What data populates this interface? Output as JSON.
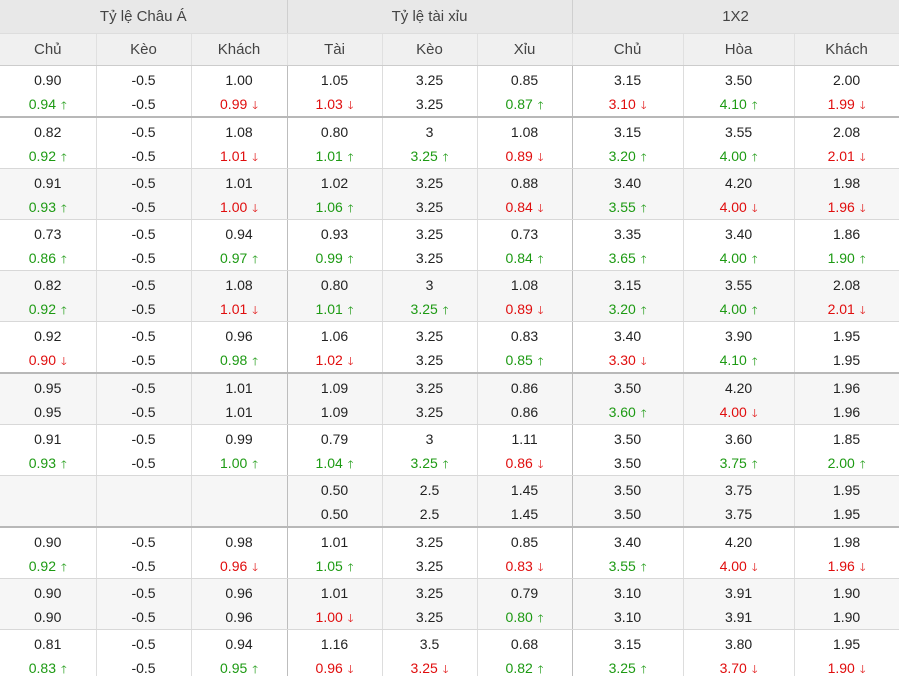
{
  "groups": [
    "Tỷ lệ Châu Á",
    "Tỷ lệ tài xỉu",
    "1X2"
  ],
  "columns": [
    "Chủ",
    "Kèo",
    "Khách",
    "Tài",
    "Kèo",
    "Xỉu",
    "Chủ",
    "Hòa",
    "Khách"
  ],
  "arrows": {
    "up": "🡑",
    "down": "🡓"
  },
  "rows": [
    {
      "cells": [
        [
          "0.90",
          [
            "0.94",
            "up"
          ]
        ],
        [
          "-0.5",
          "-0.5"
        ],
        [
          "1.00",
          [
            "0.99",
            "down"
          ]
        ],
        [
          "1.05",
          [
            "1.03",
            "down"
          ]
        ],
        [
          "3.25",
          "3.25"
        ],
        [
          "0.85",
          [
            "0.87",
            "up"
          ]
        ],
        [
          "3.15",
          [
            "3.10",
            "down"
          ]
        ],
        [
          "3.50",
          [
            "4.10",
            "up"
          ]
        ],
        [
          "2.00",
          [
            "1.99",
            "down"
          ]
        ]
      ]
    },
    {
      "cells": [
        [
          "0.82",
          [
            "0.92",
            "up"
          ]
        ],
        [
          "-0.5",
          "-0.5"
        ],
        [
          "1.08",
          [
            "1.01",
            "down"
          ]
        ],
        [
          "0.80",
          [
            "1.01",
            "up"
          ]
        ],
        [
          "3",
          [
            "3.25",
            "up"
          ]
        ],
        [
          "1.08",
          [
            "0.89",
            "down"
          ]
        ],
        [
          "3.15",
          [
            "3.20",
            "up"
          ]
        ],
        [
          "3.55",
          [
            "4.00",
            "up"
          ]
        ],
        [
          "2.08",
          [
            "2.01",
            "down"
          ]
        ]
      ]
    },
    {
      "cells": [
        [
          "0.91",
          [
            "0.93",
            "up"
          ]
        ],
        [
          "-0.5",
          "-0.5"
        ],
        [
          "1.01",
          [
            "1.00",
            "down"
          ]
        ],
        [
          "1.02",
          [
            "1.06",
            "up"
          ]
        ],
        [
          "3.25",
          "3.25"
        ],
        [
          "0.88",
          [
            "0.84",
            "down"
          ]
        ],
        [
          "3.40",
          [
            "3.55",
            "up"
          ]
        ],
        [
          "4.20",
          [
            "4.00",
            "down"
          ]
        ],
        [
          "1.98",
          [
            "1.96",
            "down"
          ]
        ]
      ]
    },
    {
      "cells": [
        [
          "0.73",
          [
            "0.86",
            "up"
          ]
        ],
        [
          "-0.5",
          "-0.5"
        ],
        [
          "0.94",
          [
            "0.97",
            "up"
          ]
        ],
        [
          "0.93",
          [
            "0.99",
            "up"
          ]
        ],
        [
          "3.25",
          "3.25"
        ],
        [
          "0.73",
          [
            "0.84",
            "up"
          ]
        ],
        [
          "3.35",
          [
            "3.65",
            "up"
          ]
        ],
        [
          "3.40",
          [
            "4.00",
            "up"
          ]
        ],
        [
          "1.86",
          [
            "1.90",
            "up"
          ]
        ]
      ]
    },
    {
      "cells": [
        [
          "0.82",
          [
            "0.92",
            "up"
          ]
        ],
        [
          "-0.5",
          "-0.5"
        ],
        [
          "1.08",
          [
            "1.01",
            "down"
          ]
        ],
        [
          "0.80",
          [
            "1.01",
            "up"
          ]
        ],
        [
          "3",
          [
            "3.25",
            "up"
          ]
        ],
        [
          "1.08",
          [
            "0.89",
            "down"
          ]
        ],
        [
          "3.15",
          [
            "3.20",
            "up"
          ]
        ],
        [
          "3.55",
          [
            "4.00",
            "up"
          ]
        ],
        [
          "2.08",
          [
            "2.01",
            "down"
          ]
        ]
      ]
    },
    {
      "cells": [
        [
          "0.92",
          [
            "0.90",
            "down"
          ]
        ],
        [
          "-0.5",
          "-0.5"
        ],
        [
          "0.96",
          [
            "0.98",
            "up"
          ]
        ],
        [
          "1.06",
          [
            "1.02",
            "down"
          ]
        ],
        [
          "3.25",
          "3.25"
        ],
        [
          "0.83",
          [
            "0.85",
            "up"
          ]
        ],
        [
          "3.40",
          [
            "3.30",
            "down"
          ]
        ],
        [
          "3.90",
          [
            "4.10",
            "up"
          ]
        ],
        [
          "1.95",
          "1.95"
        ]
      ]
    },
    {
      "cells": [
        [
          "0.95",
          "0.95"
        ],
        [
          "-0.5",
          "-0.5"
        ],
        [
          "1.01",
          "1.01"
        ],
        [
          "1.09",
          "1.09"
        ],
        [
          "3.25",
          "3.25"
        ],
        [
          "0.86",
          "0.86"
        ],
        [
          "3.50",
          [
            "3.60",
            "up"
          ]
        ],
        [
          "4.20",
          [
            "4.00",
            "down"
          ]
        ],
        [
          "1.96",
          "1.96"
        ]
      ]
    },
    {
      "cells": [
        [
          "0.91",
          [
            "0.93",
            "up"
          ]
        ],
        [
          "-0.5",
          "-0.5"
        ],
        [
          "0.99",
          [
            "1.00",
            "up"
          ]
        ],
        [
          "0.79",
          [
            "1.04",
            "up"
          ]
        ],
        [
          "3",
          [
            "3.25",
            "up"
          ]
        ],
        [
          "1.11",
          [
            "0.86",
            "down"
          ]
        ],
        [
          "3.50",
          "3.50"
        ],
        [
          "3.60",
          [
            "3.75",
            "up"
          ]
        ],
        [
          "1.85",
          [
            "2.00",
            "up"
          ]
        ]
      ]
    },
    {
      "cells": [
        [
          "",
          ""
        ],
        [
          "",
          ""
        ],
        [
          "",
          ""
        ],
        [
          "0.50",
          "0.50"
        ],
        [
          "2.5",
          "2.5"
        ],
        [
          "1.45",
          "1.45"
        ],
        [
          "3.50",
          "3.50"
        ],
        [
          "3.75",
          "3.75"
        ],
        [
          "1.95",
          "1.95"
        ]
      ]
    },
    {
      "cells": [
        [
          "0.90",
          [
            "0.92",
            "up"
          ]
        ],
        [
          "-0.5",
          "-0.5"
        ],
        [
          "0.98",
          [
            "0.96",
            "down"
          ]
        ],
        [
          "1.01",
          [
            "1.05",
            "up"
          ]
        ],
        [
          "3.25",
          "3.25"
        ],
        [
          "0.85",
          [
            "0.83",
            "down"
          ]
        ],
        [
          "3.40",
          [
            "3.55",
            "up"
          ]
        ],
        [
          "4.20",
          [
            "4.00",
            "down"
          ]
        ],
        [
          "1.98",
          [
            "1.96",
            "down"
          ]
        ]
      ]
    },
    {
      "cells": [
        [
          "0.90",
          "0.90"
        ],
        [
          "-0.5",
          "-0.5"
        ],
        [
          "0.96",
          "0.96"
        ],
        [
          "1.01",
          [
            "1.00",
            "down"
          ]
        ],
        [
          "3.25",
          "3.25"
        ],
        [
          "0.79",
          [
            "0.80",
            "up"
          ]
        ],
        [
          "3.10",
          "3.10"
        ],
        [
          "3.91",
          "3.91"
        ],
        [
          "1.90",
          "1.90"
        ]
      ]
    },
    {
      "cells": [
        [
          "0.81",
          [
            "0.83",
            "up"
          ]
        ],
        [
          "-0.5",
          "-0.5"
        ],
        [
          "0.94",
          [
            "0.95",
            "up"
          ]
        ],
        [
          "1.16",
          [
            "0.96",
            "down"
          ]
        ],
        [
          "3.5",
          [
            "3.25",
            "down"
          ]
        ],
        [
          "0.68",
          [
            "0.82",
            "up"
          ]
        ],
        [
          "3.15",
          [
            "3.25",
            "up"
          ]
        ],
        [
          "3.80",
          [
            "3.70",
            "down"
          ]
        ],
        [
          "1.95",
          [
            "1.90",
            "down"
          ]
        ]
      ]
    }
  ]
}
